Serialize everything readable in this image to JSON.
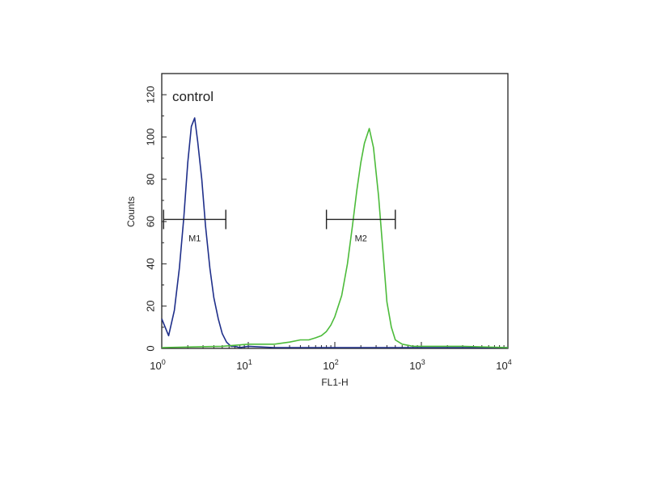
{
  "chart_data": {
    "type": "line",
    "annotation": "control",
    "xlabel": "FL1-H",
    "ylabel": "Counts",
    "xscale": "log",
    "xlim": [
      1,
      10000
    ],
    "ylim": [
      0,
      130
    ],
    "x_ticks": [
      {
        "base": "10",
        "exp": "0"
      },
      {
        "base": "10",
        "exp": "1"
      },
      {
        "base": "10",
        "exp": "2"
      },
      {
        "base": "10",
        "exp": "3"
      },
      {
        "base": "10",
        "exp": "4"
      }
    ],
    "y_ticks": [
      "0",
      "20",
      "40",
      "60",
      "80",
      "100",
      "120"
    ],
    "grid": false,
    "series": [
      {
        "color": "#1f2f8a",
        "x": [
          1.0,
          1.2,
          1.4,
          1.6,
          1.8,
          2.0,
          2.2,
          2.4,
          2.6,
          2.9,
          3.2,
          3.6,
          4.0,
          4.5,
          5.0,
          5.6,
          6.3,
          7.0,
          8.0,
          10,
          20,
          50,
          100,
          300,
          1000,
          10000
        ],
        "y": [
          14,
          6,
          18,
          38,
          62,
          88,
          105,
          109,
          98,
          80,
          58,
          38,
          24,
          14,
          7,
          3,
          1,
          1,
          0,
          1,
          0,
          0,
          0,
          0,
          0,
          0
        ]
      },
      {
        "color": "#4cbb3a",
        "x": [
          1,
          5,
          10,
          20,
          30,
          40,
          50,
          60,
          70,
          80,
          90,
          100,
          120,
          140,
          160,
          180,
          200,
          220,
          250,
          280,
          320,
          360,
          400,
          450,
          500,
          600,
          800,
          1000,
          3000,
          10000
        ],
        "y": [
          0,
          1,
          2,
          2,
          3,
          4,
          4,
          5,
          6,
          8,
          11,
          15,
          25,
          40,
          58,
          75,
          88,
          97,
          104,
          95,
          72,
          46,
          22,
          10,
          4,
          2,
          1,
          1,
          1,
          0
        ]
      }
    ],
    "markers": [
      {
        "label": "M1",
        "x_start": 1.05,
        "x_end": 5.5,
        "y": 61
      },
      {
        "label": "M2",
        "x_start": 80,
        "x_end": 500,
        "y": 61
      }
    ]
  }
}
